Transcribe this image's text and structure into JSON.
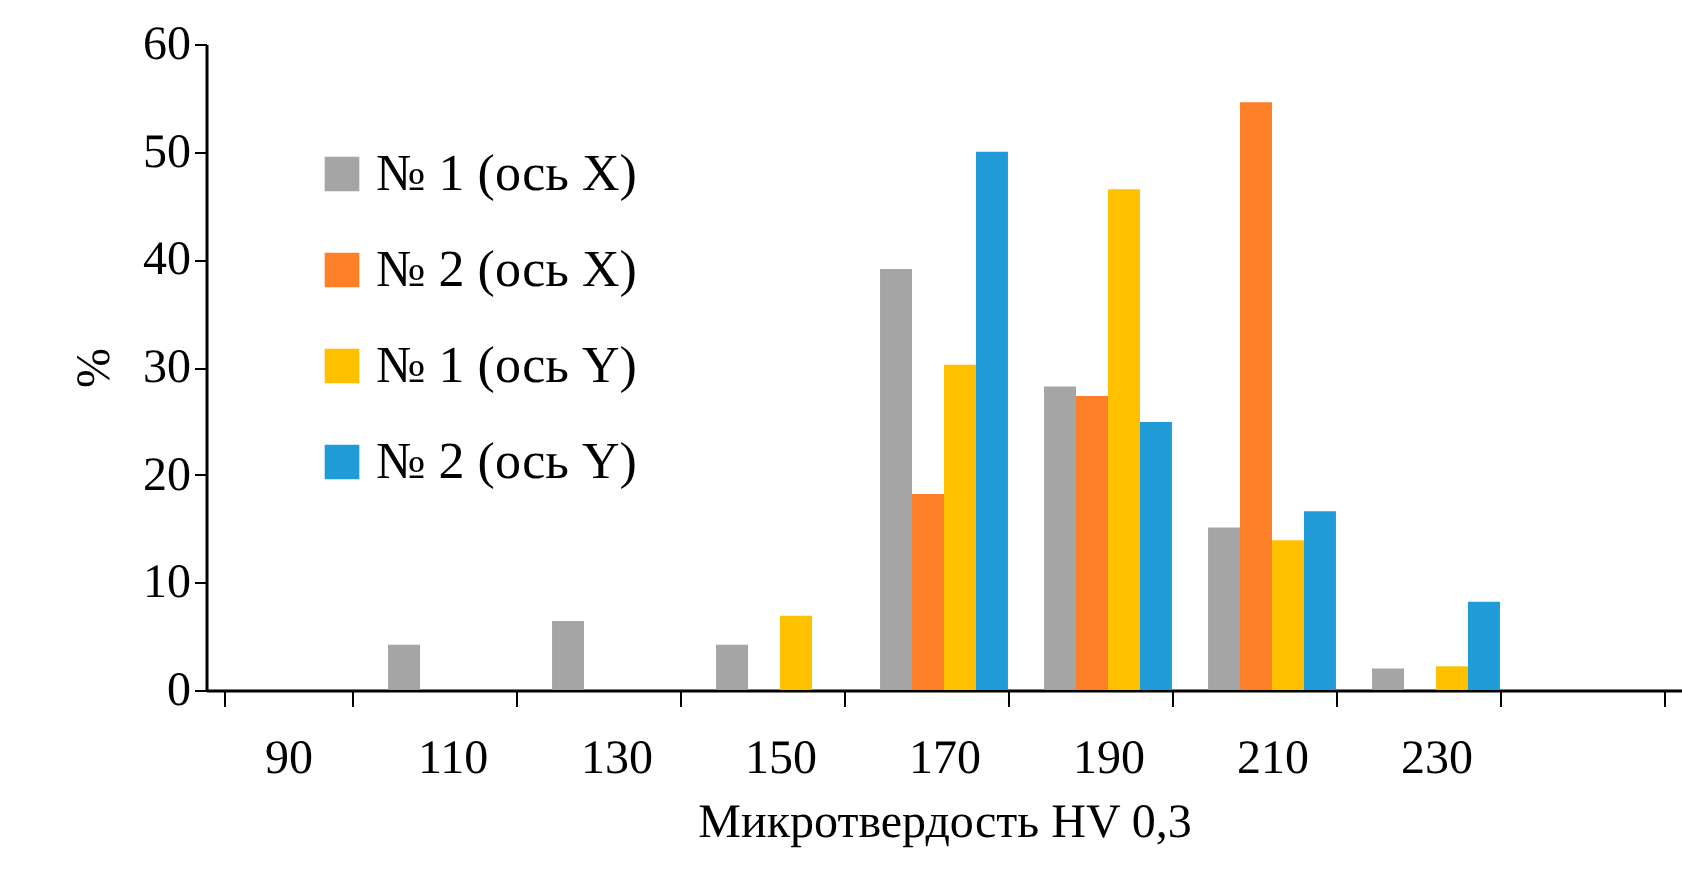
{
  "chart_data": {
    "type": "bar",
    "xlabel": "Микротвердость HV 0,3",
    "ylabel": "%",
    "categories": [
      "90",
      "110",
      "130",
      "150",
      "170",
      "190",
      "210",
      "230",
      null
    ],
    "series": [
      {
        "name": "№ 1 (ось X)",
        "color": "#a5a5a5",
        "values": [
          null,
          4.2,
          6.4,
          4.2,
          39.1,
          28.2,
          15.1,
          2.0,
          null
        ]
      },
      {
        "name": "№ 2 (ось X)",
        "color": "#fd7f28",
        "values": [
          null,
          null,
          null,
          null,
          18.2,
          27.3,
          54.6,
          null,
          null
        ]
      },
      {
        "name": "№ 1 (ось Y)",
        "color": "#ffc000",
        "values": [
          null,
          null,
          null,
          6.9,
          30.2,
          46.5,
          13.9,
          2.2,
          null
        ]
      },
      {
        "name": "№ 2 (ось Y)",
        "color": "#1f9bd7",
        "values": [
          null,
          null,
          null,
          null,
          50.0,
          24.9,
          16.6,
          8.2,
          null
        ]
      }
    ],
    "ylim": [
      0,
      60
    ],
    "yticks": [
      0,
      10,
      20,
      30,
      40,
      50,
      60
    ],
    "legend": "top left"
  }
}
